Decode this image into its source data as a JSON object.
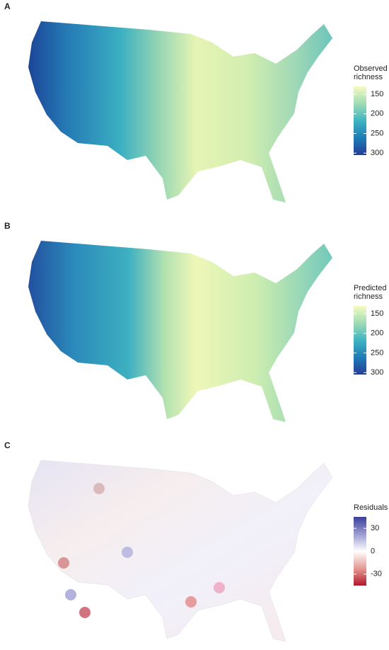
{
  "panels": [
    {
      "label": "A",
      "legend": {
        "title": [
          "Observed",
          "richness"
        ],
        "scale": [
          130,
          305
        ],
        "ticks": [
          150,
          200,
          250,
          300
        ],
        "colors": [
          "#f6fbc2",
          "#9fdcb4",
          "#3fb4c2",
          "#1d7cb6",
          "#263c94"
        ]
      }
    },
    {
      "label": "B",
      "legend": {
        "title": [
          "Predicted",
          "richness"
        ],
        "scale": [
          130,
          305
        ],
        "ticks": [
          150,
          200,
          250,
          300
        ],
        "colors": [
          "#f6fbc2",
          "#9fdcb4",
          "#3fb4c2",
          "#1d7cb6",
          "#263c94"
        ]
      }
    },
    {
      "label": "C",
      "legend": {
        "title": [
          "Residuals"
        ],
        "scale": [
          -45,
          45
        ],
        "ticks": [
          30,
          0,
          -30
        ],
        "colors": [
          "#3b3f9a",
          "#9a9bd0",
          "#ffffff",
          "#e59a94",
          "#b2182b"
        ]
      }
    }
  ]
}
